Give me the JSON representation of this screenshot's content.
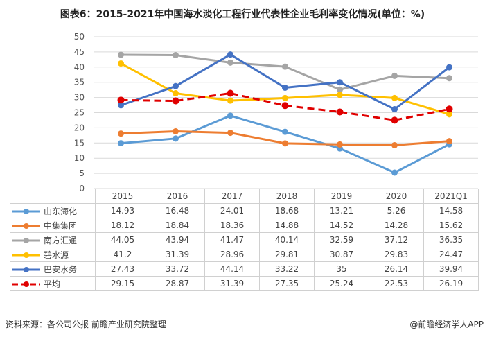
{
  "title": "图表6：2015-2021年中国海水淡化工程行业代表性企业毛利率变化情况(单位：%)",
  "footer": {
    "source": "资料来源：各公司公报 前瞻产业研究院整理",
    "credit": "@前瞻经济学人APP"
  },
  "watermark": "前瞻产业研究院",
  "chart_data": {
    "type": "line",
    "title": "图表6：2015-2021年中国海水淡化工程行业代表性企业毛利率变化情况(单位：%)",
    "categories": [
      "2015",
      "2016",
      "2017",
      "2018",
      "2019",
      "2020",
      "2021Q1"
    ],
    "ylim": [
      0,
      50
    ],
    "yticks": [
      0,
      5,
      10,
      15,
      20,
      25,
      30,
      35,
      40,
      45,
      50
    ],
    "grid": true,
    "legend": "data-table-below",
    "series": [
      {
        "name": "山东海化",
        "color": "#5B9BD5",
        "dashed": false,
        "values": [
          14.93,
          16.48,
          24.01,
          18.68,
          13.21,
          5.26,
          14.58
        ]
      },
      {
        "name": "中集集团",
        "color": "#ED7D31",
        "dashed": false,
        "values": [
          18.12,
          18.84,
          18.36,
          14.88,
          14.52,
          14.28,
          15.62
        ]
      },
      {
        "name": "南方汇通",
        "color": "#A5A5A5",
        "dashed": false,
        "values": [
          44.05,
          43.94,
          41.47,
          40.14,
          32.59,
          37.12,
          36.35
        ]
      },
      {
        "name": "碧水源",
        "color": "#FFC000",
        "dashed": false,
        "values": [
          41.2,
          31.39,
          28.96,
          29.81,
          30.87,
          29.83,
          24.47
        ]
      },
      {
        "name": "巴安水务",
        "color": "#4472C4",
        "dashed": false,
        "values": [
          27.43,
          33.72,
          44.14,
          33.22,
          35,
          26.14,
          39.94
        ]
      },
      {
        "name": "平均",
        "color": "#E00000",
        "dashed": true,
        "values": [
          29.15,
          28.87,
          31.39,
          27.35,
          25.24,
          22.53,
          26.19
        ]
      }
    ]
  }
}
